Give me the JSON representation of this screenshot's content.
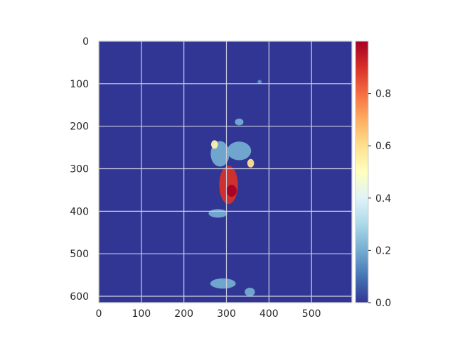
{
  "chart_data": {
    "type": "heatmap",
    "title": "",
    "xlabel": "",
    "ylabel": "",
    "xlim": [
      0,
      595
    ],
    "ylim": [
      615,
      0
    ],
    "x_ticks": [
      0,
      100,
      200,
      300,
      400,
      500
    ],
    "y_ticks": [
      0,
      100,
      200,
      300,
      400,
      500,
      600
    ],
    "grid": true,
    "colormap": "RdYlBu_r",
    "colorbar": {
      "range": [
        0.0,
        1.0
      ],
      "ticks": [
        "0.0",
        "0.2",
        "0.4",
        "0.6",
        "0.8"
      ],
      "tick_values": [
        0.0,
        0.2,
        0.4,
        0.6,
        0.8
      ],
      "placement": "right"
    },
    "background_value": 0.0,
    "regions": [
      {
        "shape": "blob",
        "cx": 305,
        "cy": 338,
        "rx": 22,
        "ry": 45,
        "value": 0.9
      },
      {
        "shape": "blob",
        "cx": 312,
        "cy": 352,
        "rx": 12,
        "ry": 14,
        "value": 1.0
      },
      {
        "shape": "blob",
        "cx": 357,
        "cy": 287,
        "rx": 8,
        "ry": 10,
        "value": 0.6
      },
      {
        "shape": "blob",
        "cx": 272,
        "cy": 243,
        "rx": 8,
        "ry": 10,
        "value": 0.55
      },
      {
        "shape": "blob",
        "cx": 330,
        "cy": 258,
        "rx": 28,
        "ry": 22,
        "value": 0.2
      },
      {
        "shape": "blob",
        "cx": 285,
        "cy": 265,
        "rx": 22,
        "ry": 30,
        "value": 0.2
      },
      {
        "shape": "blob",
        "cx": 280,
        "cy": 405,
        "rx": 22,
        "ry": 10,
        "value": 0.2
      },
      {
        "shape": "blob",
        "cx": 292,
        "cy": 570,
        "rx": 30,
        "ry": 12,
        "value": 0.2
      },
      {
        "shape": "blob",
        "cx": 355,
        "cy": 590,
        "rx": 12,
        "ry": 10,
        "value": 0.2
      },
      {
        "shape": "blob",
        "cx": 330,
        "cy": 190,
        "rx": 10,
        "ry": 8,
        "value": 0.2
      },
      {
        "shape": "blob",
        "cx": 378,
        "cy": 96,
        "rx": 5,
        "ry": 5,
        "value": 0.15
      }
    ]
  }
}
